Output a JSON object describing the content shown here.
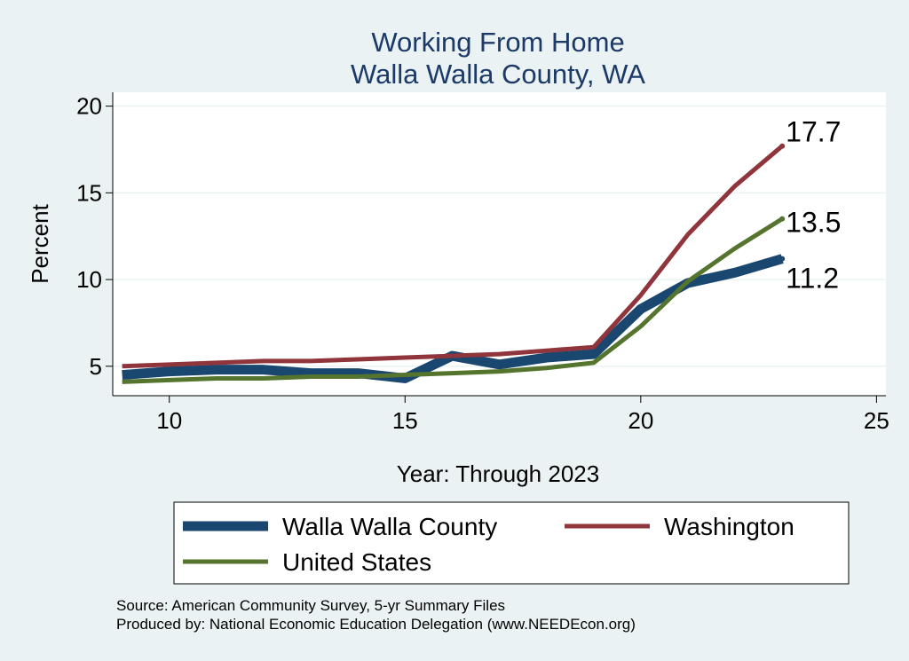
{
  "chart_data": {
    "type": "line",
    "title": "Working From Home",
    "subtitle": "Walla Walla County, WA",
    "xlabel": "Year: Through 2023",
    "ylabel": "Percent",
    "xlim": [
      8.8,
      25.2
    ],
    "ylim": [
      3.3,
      20.8
    ],
    "xticks": [
      10,
      15,
      20,
      25
    ],
    "yticks": [
      5,
      10,
      15,
      20
    ],
    "grid": true,
    "legend_position": "bottom",
    "x": [
      9,
      10,
      11,
      12,
      13,
      14,
      15,
      16,
      17,
      18,
      19,
      20,
      21,
      22,
      23
    ],
    "series": [
      {
        "name": "Walla Walla County",
        "color": "#1a476f",
        "values": [
          4.5,
          4.7,
          4.8,
          4.8,
          4.6,
          4.6,
          4.3,
          5.6,
          5.1,
          5.5,
          5.7,
          8.3,
          9.8,
          10.4,
          11.2
        ],
        "end_label": "11.2"
      },
      {
        "name": "Washington",
        "color": "#90353b",
        "values": [
          5.0,
          5.1,
          5.2,
          5.3,
          5.3,
          5.4,
          5.5,
          5.6,
          5.7,
          5.9,
          6.1,
          9.1,
          12.6,
          15.4,
          17.7
        ],
        "end_label": "17.7"
      },
      {
        "name": "United States",
        "color": "#55752f",
        "values": [
          4.1,
          4.2,
          4.3,
          4.3,
          4.4,
          4.4,
          4.5,
          4.6,
          4.7,
          4.9,
          5.2,
          7.3,
          9.9,
          11.8,
          13.5
        ],
        "end_label": "13.5"
      }
    ]
  },
  "source_line1": "Source: American Community Survey, 5-yr Summary Files",
  "source_line2": "Produced by: National Economic Education Delegation (www.NEEDEcon.org)"
}
